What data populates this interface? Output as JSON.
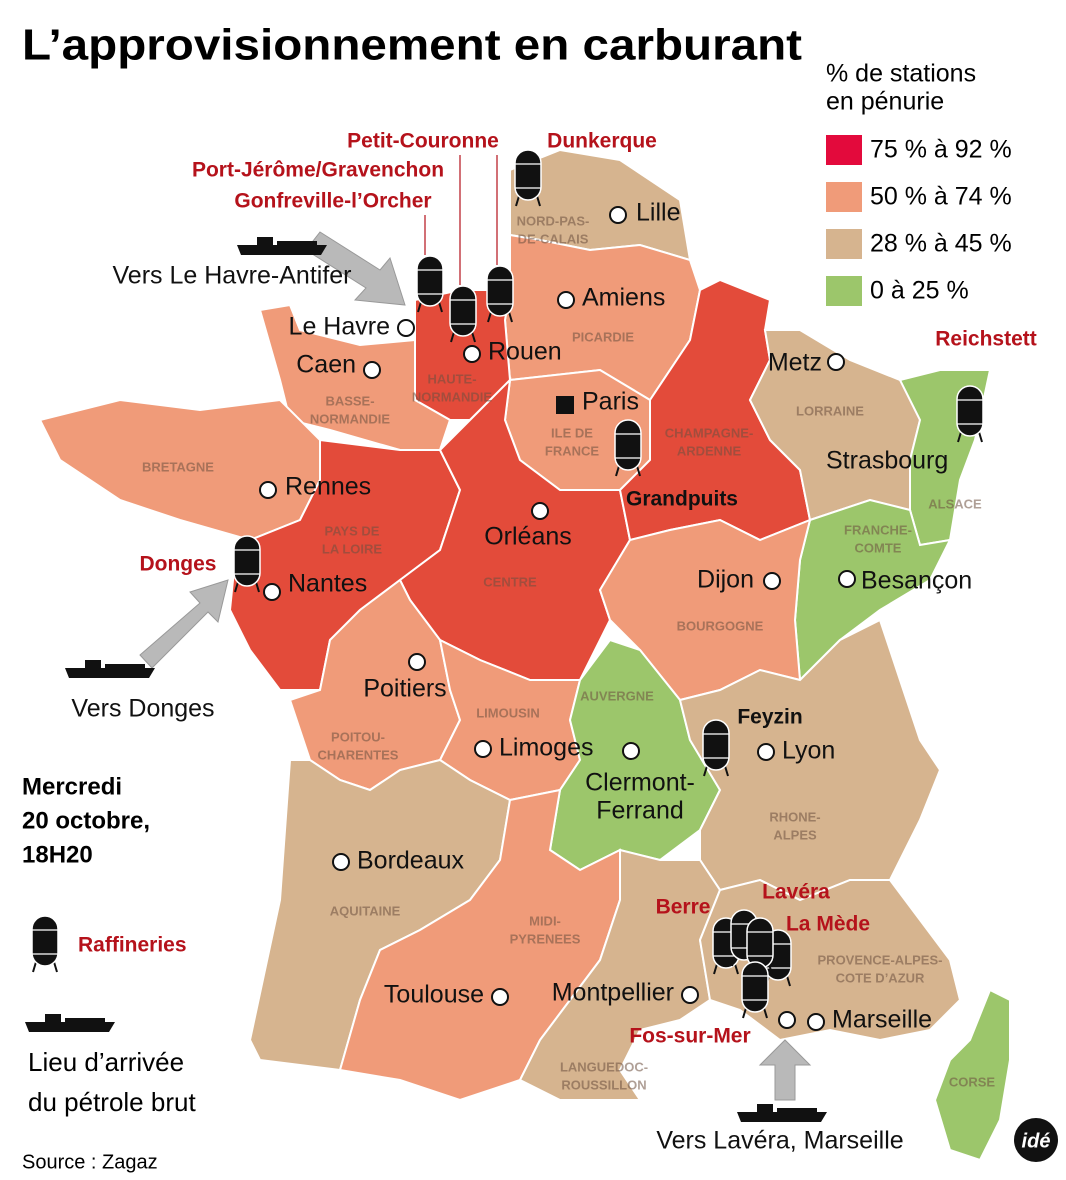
{
  "title": "L’approvisionnement en carburant",
  "legend": {
    "title": [
      "% de stations",
      "en pénurie"
    ],
    "items": [
      {
        "label": "75 % à 92 %",
        "color": "#e30a3c"
      },
      {
        "label": "50 % à 74 %",
        "color": "#f09b79"
      },
      {
        "label": "28 % à 45 %",
        "color": "#d6b48f"
      },
      {
        "label": "0 à 25 %",
        "color": "#9cc66b"
      }
    ]
  },
  "date": [
    "Mercredi",
    "20 octobre,",
    "18H20"
  ],
  "refinery_legend": "Raffineries",
  "ship_legend": [
    "Lieu d’arrivée",
    "du pétrole brut"
  ],
  "source": "Source : Zagaz",
  "logo": "idé",
  "regions": [
    {
      "name": [
        "NORD-PAS-",
        "DE-CALAIS"
      ],
      "color": "#d6b48f"
    },
    {
      "name": [
        "PICARDIE"
      ],
      "color": "#f09b79"
    },
    {
      "name": [
        "HAUTE-",
        "NORMANDIE"
      ],
      "color": "#e34b3a"
    },
    {
      "name": [
        "BASSE-",
        "NORMANDIE"
      ],
      "color": "#f09b79"
    },
    {
      "name": [
        "BRETAGNE"
      ],
      "color": "#f09b79"
    },
    {
      "name": [
        "PAYS DE",
        "LA LOIRE"
      ],
      "color": "#e34b3a"
    },
    {
      "name": [
        "ILE DE",
        "FRANCE"
      ],
      "color": "#f09b79"
    },
    {
      "name": [
        "CENTRE"
      ],
      "color": "#e34b3a"
    },
    {
      "name": [
        "CHAMPAGNE-",
        "ARDENNE"
      ],
      "color": "#e34b3a"
    },
    {
      "name": [
        "LORRAINE"
      ],
      "color": "#d6b48f"
    },
    {
      "name": [
        "ALSACE"
      ],
      "color": "#9cc66b"
    },
    {
      "name": [
        "FRANCHE-",
        "COMTE"
      ],
      "color": "#9cc66b"
    },
    {
      "name": [
        "BOURGOGNE"
      ],
      "color": "#f09b79"
    },
    {
      "name": [
        "POITOU-",
        "CHARENTES"
      ],
      "color": "#f09b79"
    },
    {
      "name": [
        "LIMOUSIN"
      ],
      "color": "#f09b79"
    },
    {
      "name": [
        "AUVERGNE"
      ],
      "color": "#9cc66b"
    },
    {
      "name": [
        "RHONE-",
        "ALPES"
      ],
      "color": "#d6b48f"
    },
    {
      "name": [
        "AQUITAINE"
      ],
      "color": "#d6b48f"
    },
    {
      "name": [
        "MIDI-",
        "PYRENEES"
      ],
      "color": "#f09b79"
    },
    {
      "name": [
        "LANGUEDOC-",
        "ROUSSILLON"
      ],
      "color": "#d6b48f"
    },
    {
      "name": [
        "PROVENCE-ALPES-",
        "COTE D’AZUR"
      ],
      "color": "#d6b48f"
    },
    {
      "name": [
        "CORSE"
      ],
      "color": "#9cc66b"
    }
  ],
  "cities": [
    [
      "Lille"
    ],
    [
      "Amiens"
    ],
    [
      "Le Havre"
    ],
    [
      "Rouen"
    ],
    [
      "Caen"
    ],
    [
      "Paris"
    ],
    [
      "Metz"
    ],
    [
      "Strasbourg"
    ],
    [
      "Rennes"
    ],
    [
      "Orléans"
    ],
    [
      "Nantes"
    ],
    [
      "Dijon"
    ],
    [
      "Besançon"
    ],
    [
      "Poitiers"
    ],
    [
      "Limoges"
    ],
    [
      "Clermont-",
      "Ferrand"
    ],
    [
      "Lyon"
    ],
    [
      "Bordeaux"
    ],
    [
      "Toulouse"
    ],
    [
      "Montpellier"
    ],
    [
      "Marseille"
    ]
  ],
  "refineries": [
    "Petit-Couronne",
    "Dunkerque",
    "Port-Jérôme/Gravenchon",
    "Gonfreville-l’Orcher",
    "Reichstett",
    "Grandpuits",
    "Donges",
    "Feyzin",
    "Berre",
    "Lavéra",
    "La Mède",
    "Fos-sur-Mer"
  ],
  "arrivals": [
    "Vers Le Havre-Antifer",
    "Vers Donges",
    "Vers Lavéra, Marseille"
  ]
}
